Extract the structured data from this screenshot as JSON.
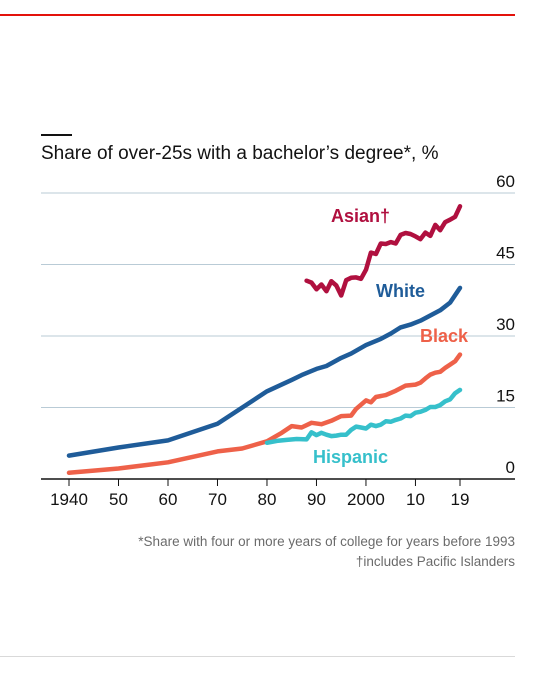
{
  "colors": {
    "accent": "#e3120b",
    "grid": "#b9cbd6",
    "axis": "#121212",
    "text": "#121212",
    "footnote": "#6b6b6b"
  },
  "chart_data": {
    "type": "line",
    "title": "Share of over-25s with a bachelor’s degree*, %",
    "xlabel": "",
    "ylabel": "",
    "xlim": [
      1937,
      2024
    ],
    "ylim": [
      0,
      60
    ],
    "y_ticks": [
      0,
      15,
      30,
      45,
      60
    ],
    "y_tick_labels": [
      "0",
      "15",
      "30",
      "45",
      "60"
    ],
    "x_ticks": [
      1940,
      1950,
      1960,
      1970,
      1980,
      1990,
      2000,
      2010,
      2019
    ],
    "x_tick_labels": [
      "1940",
      "50",
      "60",
      "70",
      "80",
      "90",
      "2000",
      "10",
      "19"
    ],
    "grid": true,
    "legend": "inline labels",
    "series": [
      {
        "name": "Asian†",
        "color": "#b0103f",
        "points": [
          [
            1988,
            41.6
          ],
          [
            1989,
            41.2
          ],
          [
            1990,
            39.8
          ],
          [
            1991,
            40.8
          ],
          [
            1992,
            39.4
          ],
          [
            1993,
            41.5
          ],
          [
            1994,
            40.6
          ],
          [
            1995,
            38.5
          ],
          [
            1996,
            41.7
          ],
          [
            1997,
            42.2
          ],
          [
            1998,
            42.3
          ],
          [
            1999,
            42.0
          ],
          [
            2000,
            43.9
          ],
          [
            2001,
            47.5
          ],
          [
            2002,
            47.2
          ],
          [
            2003,
            49.4
          ],
          [
            2004,
            49.3
          ],
          [
            2005,
            49.7
          ],
          [
            2006,
            49.4
          ],
          [
            2007,
            51.2
          ],
          [
            2008,
            51.6
          ],
          [
            2009,
            51.4
          ],
          [
            2010,
            50.9
          ],
          [
            2011,
            50.3
          ],
          [
            2012,
            51.7
          ],
          [
            2013,
            51.0
          ],
          [
            2014,
            53.3
          ],
          [
            2015,
            52.2
          ],
          [
            2016,
            53.9
          ],
          [
            2017,
            54.4
          ],
          [
            2018,
            55.0
          ],
          [
            2019,
            57.2
          ]
        ]
      },
      {
        "name": "White",
        "color": "#1f5c99",
        "points": [
          [
            1940,
            4.9
          ],
          [
            1950,
            6.6
          ],
          [
            1960,
            8.1
          ],
          [
            1970,
            11.6
          ],
          [
            1980,
            18.4
          ],
          [
            1985,
            20.8
          ],
          [
            1987,
            21.8
          ],
          [
            1990,
            23.1
          ],
          [
            1992,
            23.7
          ],
          [
            1995,
            25.4
          ],
          [
            1997,
            26.3
          ],
          [
            2000,
            28.1
          ],
          [
            2003,
            29.4
          ],
          [
            2005,
            30.5
          ],
          [
            2007,
            31.8
          ],
          [
            2009,
            32.4
          ],
          [
            2011,
            33.2
          ],
          [
            2013,
            34.3
          ],
          [
            2015,
            35.4
          ],
          [
            2017,
            37.0
          ],
          [
            2019,
            40.1
          ]
        ]
      },
      {
        "name": "Black",
        "color": "#ee6149",
        "points": [
          [
            1940,
            1.3
          ],
          [
            1950,
            2.2
          ],
          [
            1960,
            3.5
          ],
          [
            1970,
            5.8
          ],
          [
            1975,
            6.4
          ],
          [
            1980,
            7.9
          ],
          [
            1983,
            9.7
          ],
          [
            1985,
            11.1
          ],
          [
            1987,
            10.8
          ],
          [
            1989,
            11.8
          ],
          [
            1991,
            11.5
          ],
          [
            1993,
            12.2
          ],
          [
            1995,
            13.2
          ],
          [
            1997,
            13.3
          ],
          [
            1998,
            14.7
          ],
          [
            2000,
            16.5
          ],
          [
            2001,
            16.1
          ],
          [
            2002,
            17.2
          ],
          [
            2004,
            17.6
          ],
          [
            2006,
            18.5
          ],
          [
            2008,
            19.6
          ],
          [
            2010,
            19.8
          ],
          [
            2011,
            20.2
          ],
          [
            2012,
            21.1
          ],
          [
            2013,
            21.9
          ],
          [
            2014,
            22.3
          ],
          [
            2015,
            22.5
          ],
          [
            2016,
            23.3
          ],
          [
            2017,
            24.0
          ],
          [
            2018,
            24.7
          ],
          [
            2019,
            26.1
          ]
        ]
      },
      {
        "name": "Hispanic",
        "color": "#36c0cb",
        "points": [
          [
            1980,
            7.6
          ],
          [
            1982,
            8.0
          ],
          [
            1984,
            8.2
          ],
          [
            1986,
            8.4
          ],
          [
            1988,
            8.3
          ],
          [
            1989,
            9.8
          ],
          [
            1990,
            9.2
          ],
          [
            1991,
            9.7
          ],
          [
            1992,
            9.3
          ],
          [
            1993,
            9.0
          ],
          [
            1994,
            9.1
          ],
          [
            1995,
            9.3
          ],
          [
            1996,
            9.3
          ],
          [
            1997,
            10.3
          ],
          [
            1998,
            11.0
          ],
          [
            1999,
            10.8
          ],
          [
            2000,
            10.6
          ],
          [
            2001,
            11.4
          ],
          [
            2002,
            11.1
          ],
          [
            2003,
            11.4
          ],
          [
            2004,
            12.1
          ],
          [
            2005,
            12.0
          ],
          [
            2006,
            12.4
          ],
          [
            2007,
            12.7
          ],
          [
            2008,
            13.3
          ],
          [
            2009,
            13.2
          ],
          [
            2010,
            13.9
          ],
          [
            2011,
            14.1
          ],
          [
            2012,
            14.5
          ],
          [
            2013,
            15.1
          ],
          [
            2014,
            15.1
          ],
          [
            2015,
            15.5
          ],
          [
            2016,
            16.3
          ],
          [
            2017,
            16.7
          ],
          [
            2018,
            18.0
          ],
          [
            2019,
            18.7
          ]
        ]
      }
    ]
  },
  "footnotes": {
    "line1": "*Share with four or more years of college for years before 1993",
    "line2": "†includes Pacific Islanders"
  }
}
